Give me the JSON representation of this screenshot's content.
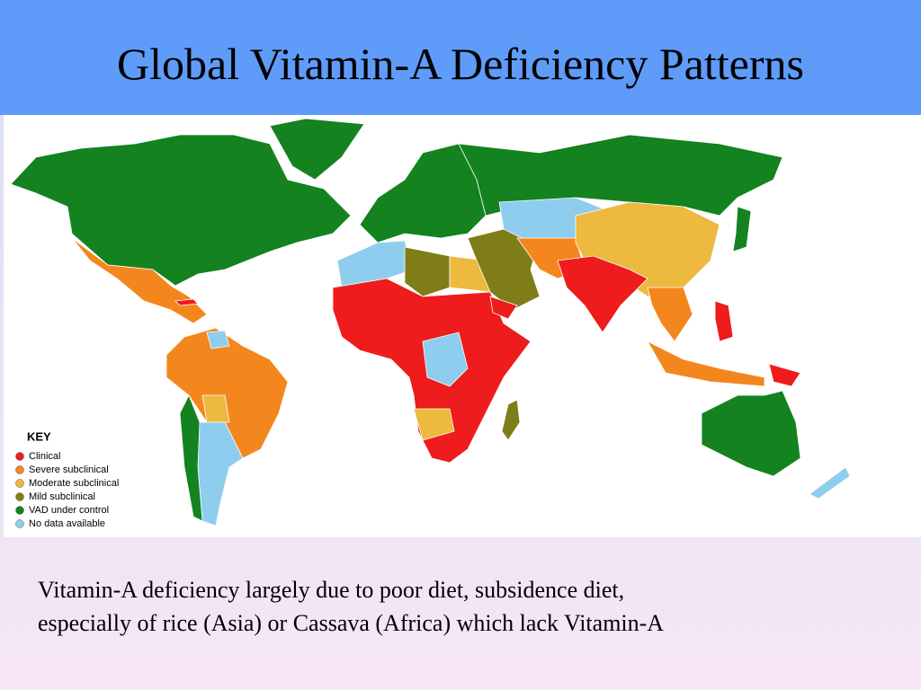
{
  "title": "Global Vitamin-A Deficiency Patterns",
  "key": {
    "title": "KEY",
    "entries": [
      {
        "label": "Clinical",
        "color": "#ee1c1c"
      },
      {
        "label": "Severe subclinical",
        "color": "#f4861e"
      },
      {
        "label": "Moderate subclinical",
        "color": "#edb93e"
      },
      {
        "label": "Mild subclinical",
        "color": "#7f7d17"
      },
      {
        "label": "VAD under control",
        "color": "#13821f"
      },
      {
        "label": "No data available",
        "color": "#8fcdee"
      }
    ]
  },
  "caption": [
    "Vitamin-A deficiency largely due to poor diet, subsidence diet,",
    "especially of rice (Asia) or Cassava (Africa) which lack Vitamin-A"
  ]
}
